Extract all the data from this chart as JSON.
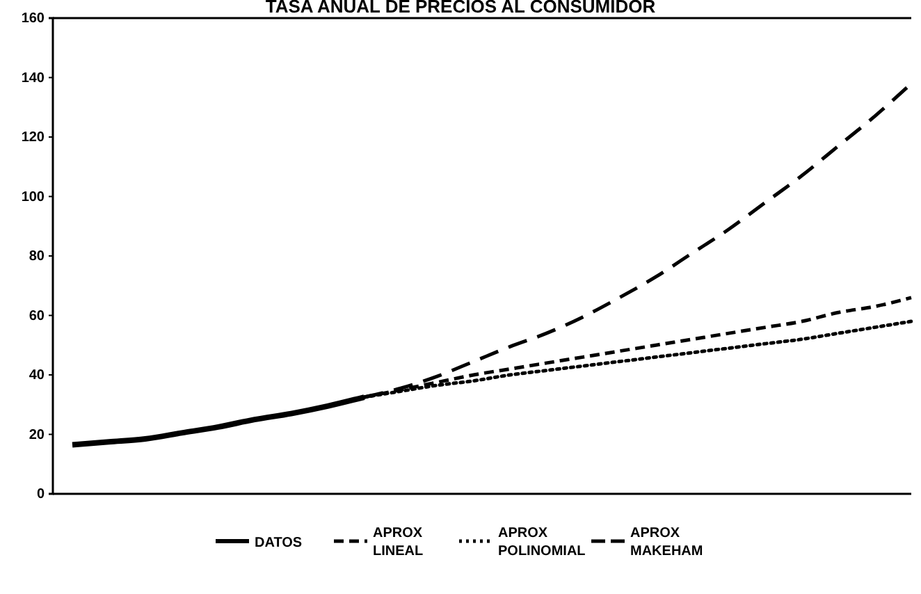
{
  "chart_data": {
    "type": "line",
    "title": "TASA ANUAL DE PRECIOS AL CONSUMIDOR",
    "categories": [
      null,
      null,
      null,
      null,
      null,
      null,
      null,
      null,
      null,
      null,
      null,
      null,
      null,
      null,
      null,
      null,
      null,
      null,
      null,
      null,
      null,
      null,
      null,
      null
    ],
    "ylim": [
      0,
      160
    ],
    "yticks": [
      0,
      20,
      40,
      60,
      80,
      100,
      120,
      140,
      160
    ],
    "tick_labels": "y",
    "grid": false,
    "legend": "bottom",
    "marker": "none",
    "series": [
      {
        "name": "DATOS",
        "color": "#000000",
        "line_style": "solid",
        "values": [
          16.5,
          17.5,
          18.5,
          20.5,
          22.5,
          25,
          27,
          29.5,
          32.5,
          null,
          null,
          null,
          null,
          null,
          null,
          null,
          null,
          null,
          null,
          null,
          null,
          null,
          null,
          null
        ]
      },
      {
        "name": "APROX LINEAL",
        "color": "#000000",
        "line_style": "dashed",
        "values": [
          null,
          null,
          null,
          null,
          null,
          null,
          null,
          null,
          32.5,
          35,
          37.5,
          40,
          42,
          44,
          46,
          48,
          50,
          52,
          54,
          56,
          58,
          61,
          63,
          66
        ]
      },
      {
        "name": "APROX POLINOMIAL",
        "color": "#000000",
        "line_style": "dotted",
        "values": [
          null,
          null,
          null,
          null,
          null,
          null,
          null,
          null,
          32.5,
          34.5,
          36.5,
          38,
          40,
          41.5,
          43,
          44.5,
          46,
          47.5,
          49,
          50.5,
          52,
          54,
          56,
          58
        ]
      },
      {
        "name": "APROX MAKEHAM",
        "color": "#000000",
        "line_style": "dashed",
        "values": [
          null,
          null,
          null,
          null,
          null,
          null,
          null,
          null,
          32.5,
          35.5,
          39.5,
          44.5,
          49.5,
          54,
          59.5,
          66,
          73,
          81,
          89,
          98,
          107,
          117,
          127,
          138
        ]
      }
    ]
  }
}
